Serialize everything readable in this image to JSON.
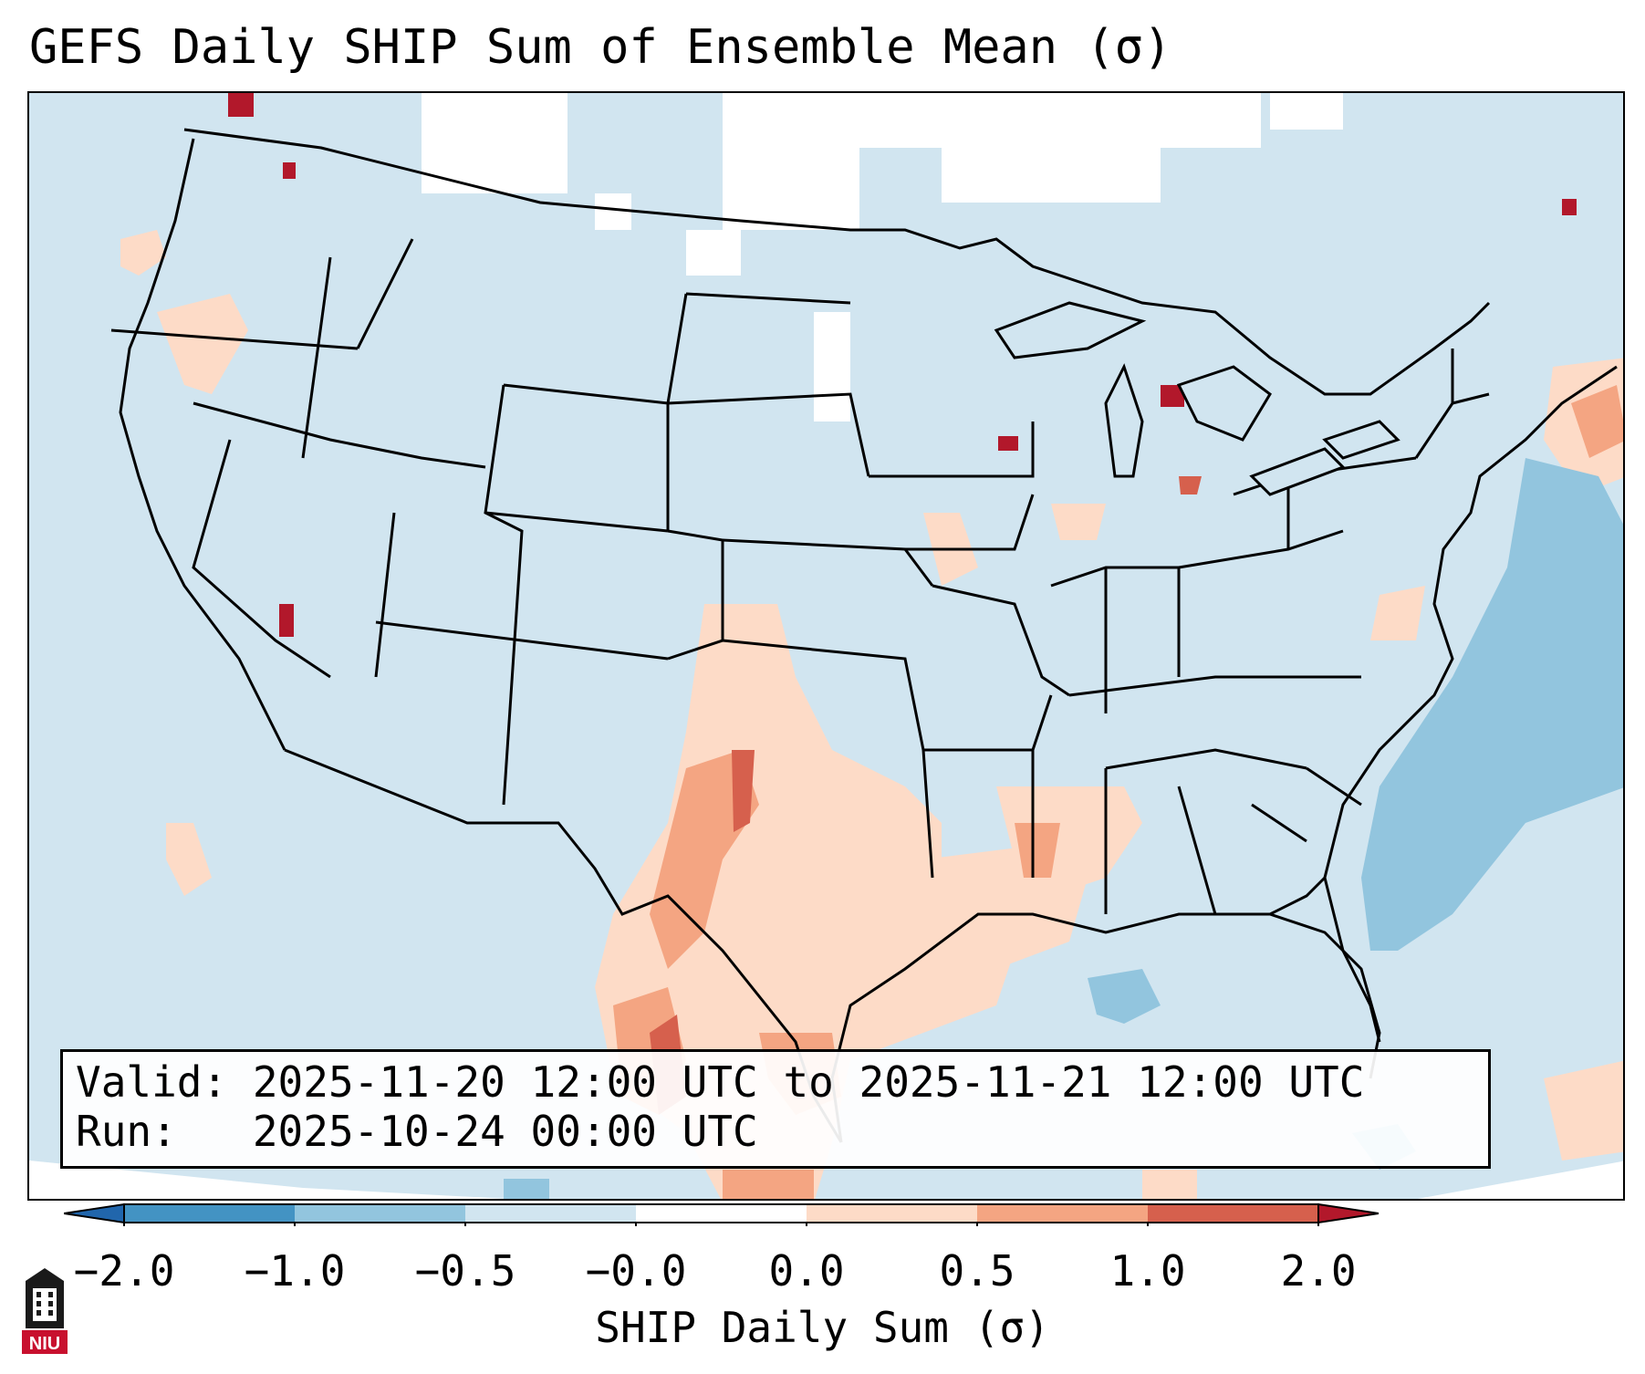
{
  "title": "GEFS Daily SHIP Sum of Ensemble Mean (σ)",
  "info": {
    "valid_line": "Valid: 2025-11-20 12:00 UTC to 2025-11-21 12:00 UTC",
    "run_line": "Run:   2025-10-24 00:00 UTC"
  },
  "colorbar": {
    "label": "SHIP Daily Sum (σ)",
    "ticks": [
      "−2.0",
      "−1.0",
      "−0.5",
      "−0.0",
      "0.0",
      "0.5",
      "1.0",
      "2.0"
    ],
    "colors": [
      "#4393c3",
      "#92c5de",
      "#d1e5f0",
      "#ffffff",
      "#fddbc7",
      "#f4a582",
      "#d6604d"
    ],
    "extend_low_color": "#2166ac",
    "extend_high_color": "#b2182b"
  },
  "logo": {
    "text": "NIU"
  }
}
